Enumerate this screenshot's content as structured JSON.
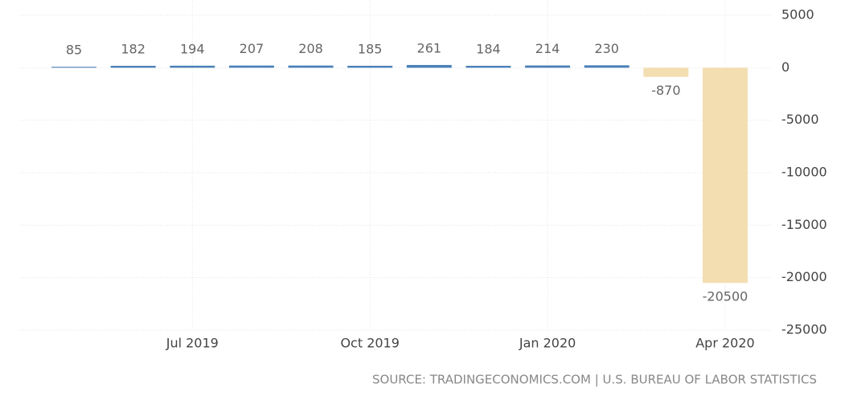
{
  "chart_data": {
    "type": "bar",
    "categories": [
      null,
      null,
      "Jul 2019",
      null,
      null,
      "Oct 2019",
      null,
      null,
      "Jan 2020",
      null,
      null,
      "Apr 2020"
    ],
    "values": [
      85,
      182,
      194,
      207,
      208,
      185,
      261,
      184,
      214,
      230,
      -870,
      -20500
    ],
    "color": "#4a80b8",
    "negative_color": "#f3deb2",
    "ylim": [
      -25000,
      5000
    ],
    "yticks": [
      5000,
      0,
      -5000,
      -10000,
      -15000,
      -20000,
      -25000
    ],
    "grid": true,
    "source": "SOURCE: TRADINGECONOMICS.COM | U.S. BUREAU OF LABOR STATISTICS"
  }
}
